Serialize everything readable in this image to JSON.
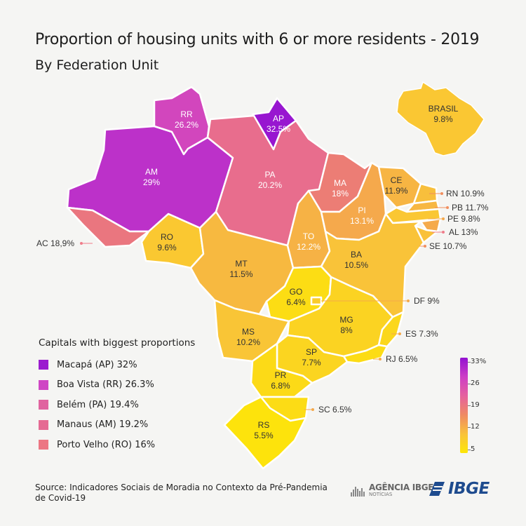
{
  "title": "Proportion of housing units with 6 or more residents - 2019",
  "subtitle": "By Federation Unit",
  "states": {
    "RR": {
      "abbr": "RR",
      "value": "26.2%",
      "num": 26.2
    },
    "AP": {
      "abbr": "AP",
      "value": "32.5%",
      "num": 32.5
    },
    "AM": {
      "abbr": "AM",
      "value": "29%",
      "num": 29
    },
    "PA": {
      "abbr": "PA",
      "value": "20.2%",
      "num": 20.2
    },
    "MA": {
      "abbr": "MA",
      "value": "18%",
      "num": 18
    },
    "PI": {
      "abbr": "PI",
      "value": "13.1%",
      "num": 13.1
    },
    "CE": {
      "abbr": "CE",
      "value": "11.9%",
      "num": 11.9
    },
    "TO": {
      "abbr": "TO",
      "value": "12.2%",
      "num": 12.2
    },
    "RO": {
      "abbr": "RO",
      "value": "9.6%",
      "num": 9.6
    },
    "MT": {
      "abbr": "MT",
      "value": "11.5%",
      "num": 11.5
    },
    "BA": {
      "abbr": "BA",
      "value": "10.5%",
      "num": 10.5
    },
    "GO": {
      "abbr": "GO",
      "value": "6.4%",
      "num": 6.4
    },
    "MG": {
      "abbr": "MG",
      "value": "8%",
      "num": 8
    },
    "MS": {
      "abbr": "MS",
      "value": "10.2%",
      "num": 10.2
    },
    "SP": {
      "abbr": "SP",
      "value": "7.7%",
      "num": 7.7
    },
    "PR": {
      "abbr": "PR",
      "value": "6.8%",
      "num": 6.8
    },
    "RS": {
      "abbr": "RS",
      "value": "5.5%",
      "num": 5.5
    },
    "BRASIL": {
      "abbr": "BRASIL",
      "value": "9.8%",
      "num": 9.8
    }
  },
  "callouts": {
    "AC": "AC 18,9%",
    "RN": "RN 10.9%",
    "PB": "PB 11.7%",
    "PE": "PE 9.8%",
    "AL": "AL 13%",
    "SE": "SE 10.7%",
    "DF": "DF 9%",
    "ES": "ES 7.3%",
    "RJ": "RJ 6.5%",
    "SC": "SC 6.5%"
  },
  "callout_values": {
    "AC": 18.9,
    "RN": 10.9,
    "PB": 11.7,
    "PE": 9.8,
    "AL": 13,
    "SE": 10.7,
    "DF": 9,
    "ES": 7.3,
    "RJ": 6.5,
    "SC": 6.5
  },
  "legend": {
    "title": "Capitals with biggest proportions",
    "items": [
      {
        "label": "Macapá (AP) 32%",
        "color": "#9b1ccf"
      },
      {
        "label": "Boa Vista (RR) 26.3%",
        "color": "#cf46c4"
      },
      {
        "label": "Belém (PA) 19.4%",
        "color": "#e0649f"
      },
      {
        "label": "Manaus (AM) 19.2%",
        "color": "#e56a93"
      },
      {
        "label": "Porto Velho (RO) 16%",
        "color": "#ec7683"
      }
    ]
  },
  "scale": {
    "ticks": [
      "33%",
      "26",
      "19",
      "12",
      "5"
    ],
    "colors": [
      "#9312d1",
      "#cd3ec6",
      "#e5619e",
      "#ef8a62",
      "#f9c23a",
      "#fde607"
    ]
  },
  "source": "Source: Indicadores Sociais de Moradia no Contexto da Pré-Pandemia de Covid-19",
  "logos": {
    "agencia": "AGÊNCIA IBGE",
    "agencia_sub": "NOTÍCIAS",
    "ibge": "IBGE"
  }
}
